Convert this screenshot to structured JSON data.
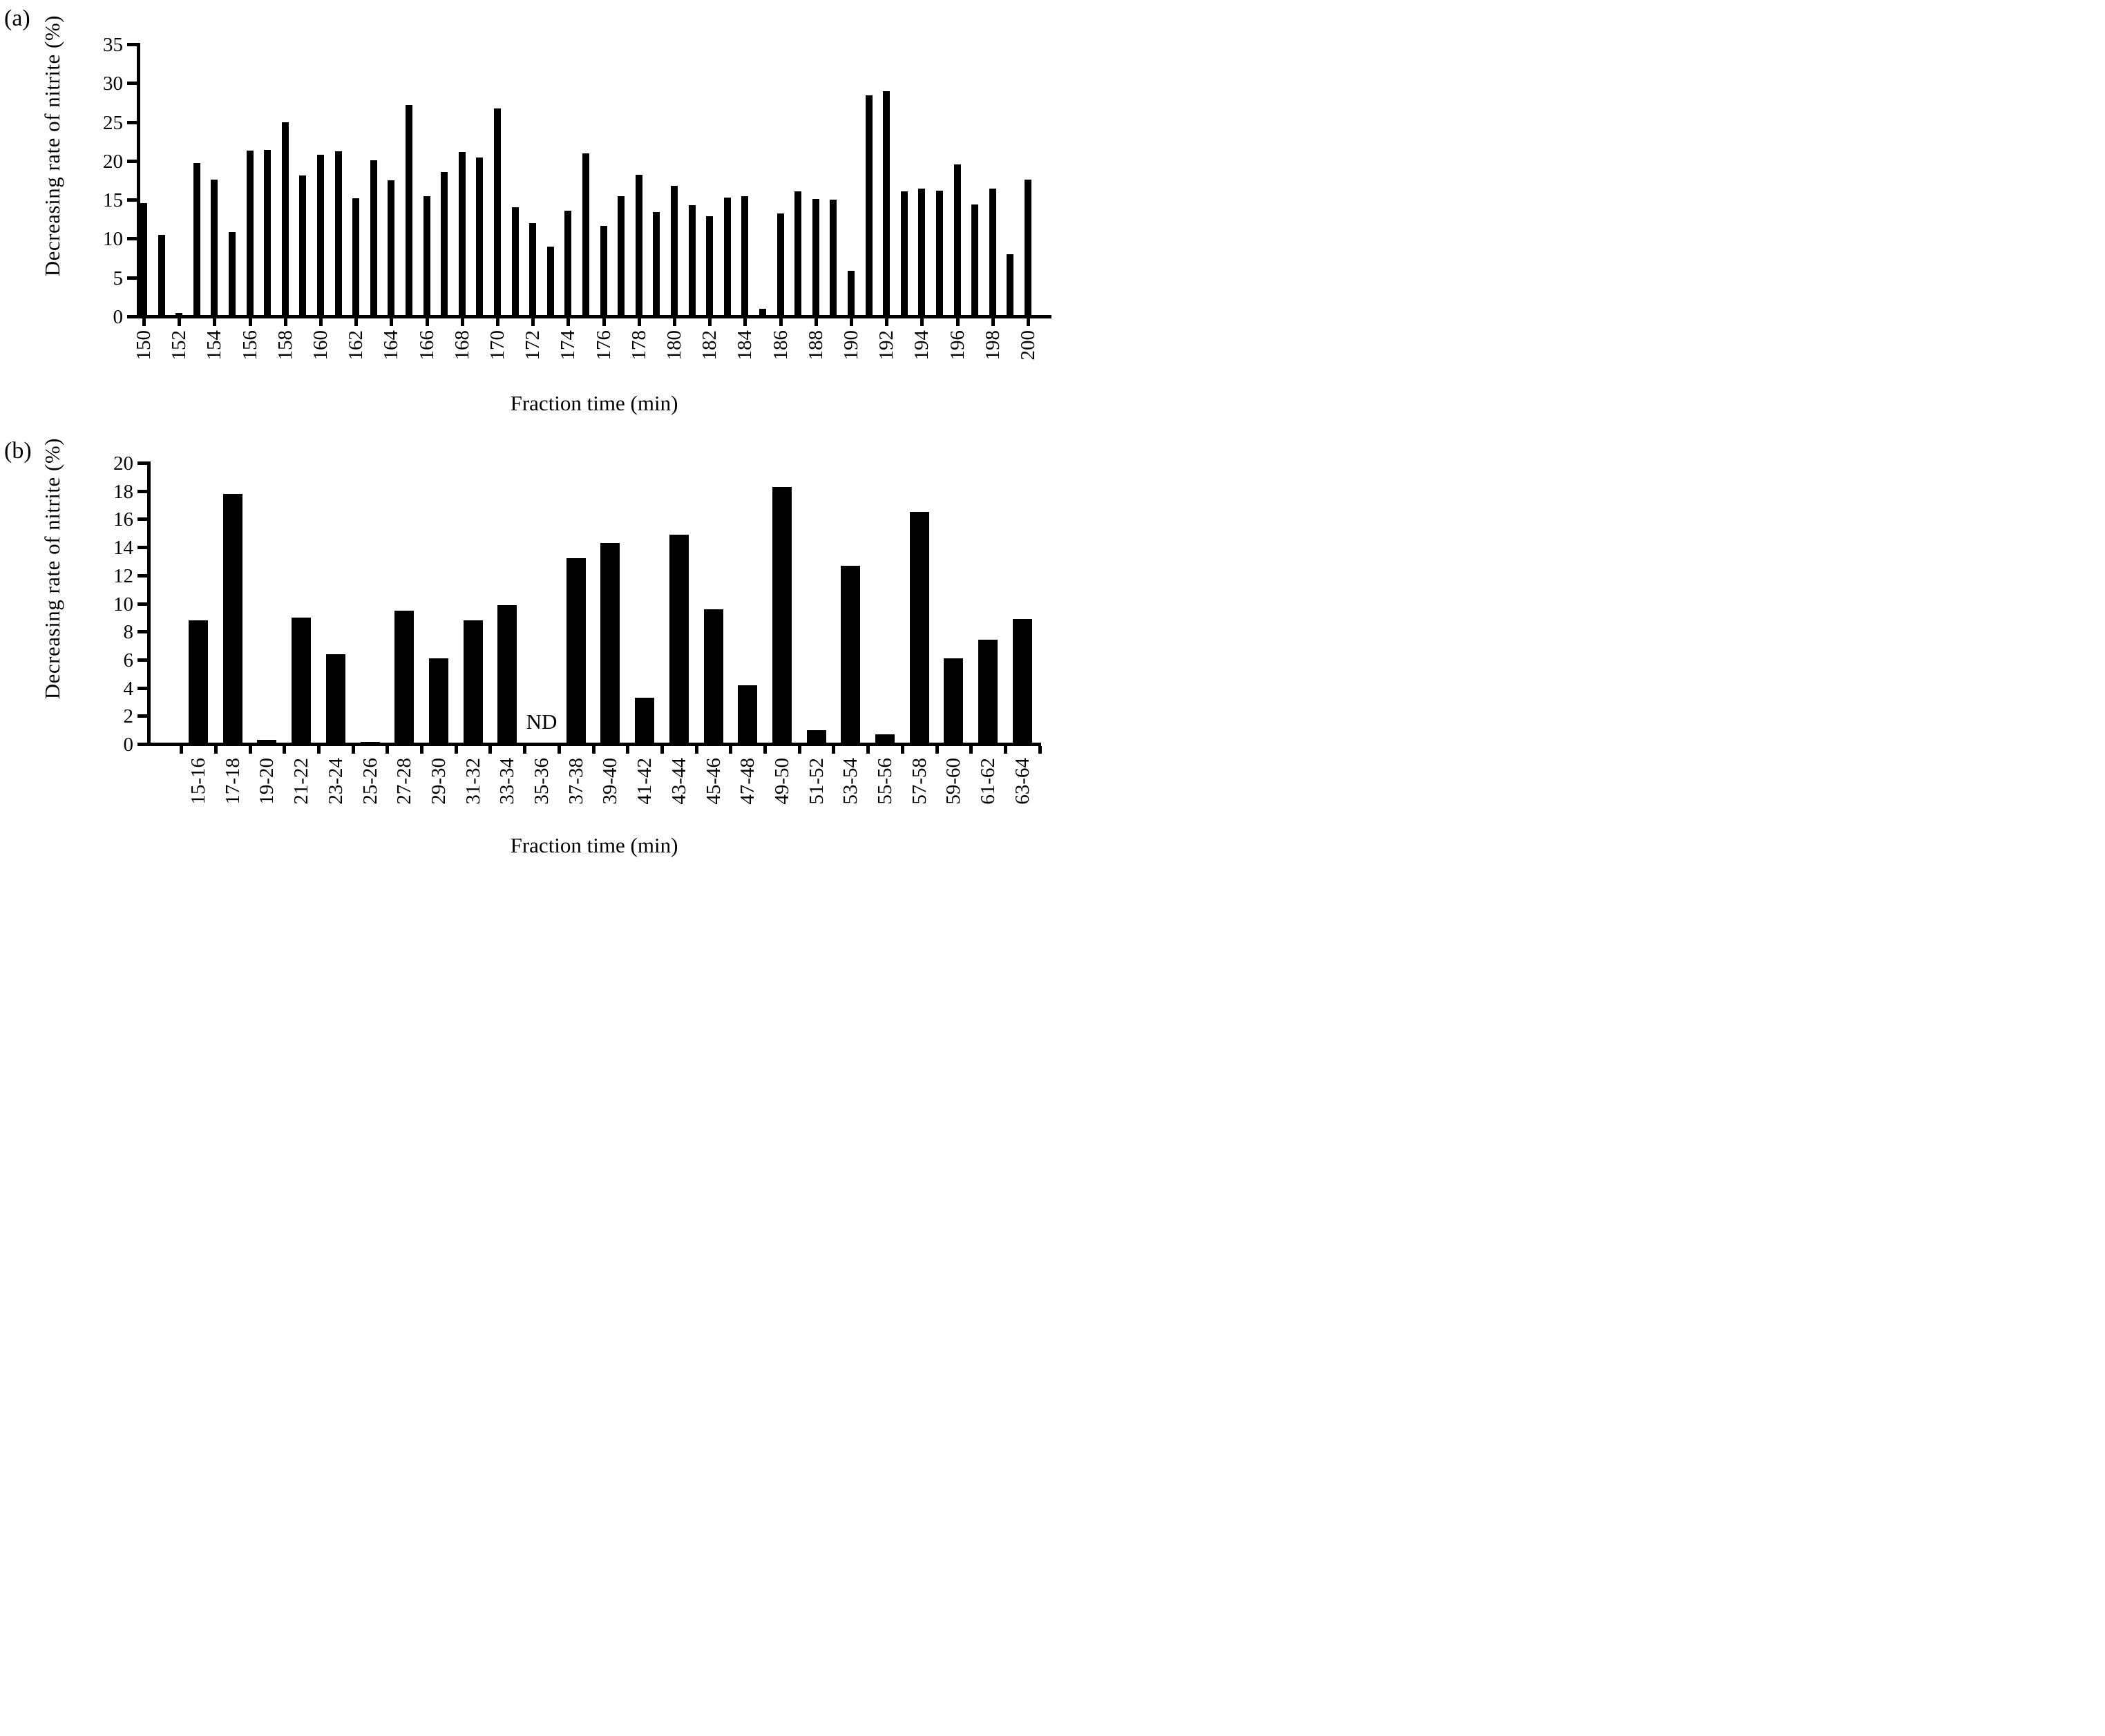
{
  "chart_data": [
    {
      "type": "bar",
      "panel_label": "(a)",
      "ylabel": "Decreasing rate of nitrite (%)",
      "xlabel": "Fraction time (min)",
      "ylim": [
        0,
        35
      ],
      "ytick_step": 5,
      "yticks": [
        0,
        5,
        10,
        15,
        20,
        25,
        30,
        35
      ],
      "grid": "off",
      "legend": "none",
      "bar_color": "#000000",
      "categories": [
        150,
        151,
        152,
        153,
        154,
        155,
        156,
        157,
        158,
        159,
        160,
        161,
        162,
        163,
        164,
        165,
        166,
        167,
        168,
        169,
        170,
        171,
        172,
        173,
        174,
        175,
        176,
        177,
        178,
        179,
        180,
        181,
        182,
        183,
        184,
        185,
        186,
        187,
        188,
        189,
        190,
        191,
        192,
        193,
        194,
        195,
        196,
        197,
        198,
        199,
        200
      ],
      "xticks": [
        150,
        152,
        154,
        156,
        158,
        160,
        162,
        164,
        166,
        168,
        170,
        172,
        174,
        176,
        178,
        180,
        182,
        184,
        186,
        188,
        190,
        192,
        194,
        196,
        198,
        200
      ],
      "values": [
        14.6,
        10.5,
        0.4,
        19.7,
        17.6,
        10.8,
        21.3,
        21.4,
        25.0,
        18.1,
        20.8,
        21.2,
        15.2,
        20.1,
        17.5,
        27.2,
        15.5,
        18.6,
        21.1,
        20.4,
        26.7,
        14.0,
        12.0,
        9.0,
        13.6,
        21.0,
        11.6,
        15.5,
        18.2,
        13.4,
        16.8,
        14.3,
        12.9,
        15.3,
        15.5,
        1.0,
        13.2,
        16.1,
        15.1,
        15.0,
        5.9,
        28.4,
        29.0,
        16.1,
        16.4,
        16.2,
        19.5,
        14.4,
        16.4,
        8.0,
        17.6
      ]
    },
    {
      "type": "bar",
      "panel_label": "(b)",
      "ylabel": "Decreasing rate of nitrite (%)",
      "xlabel": "Fraction time (min)",
      "ylim": [
        0,
        20
      ],
      "ytick_step": 2,
      "yticks": [
        0,
        2,
        4,
        6,
        8,
        10,
        12,
        14,
        16,
        18,
        20
      ],
      "grid": "off",
      "legend": "none",
      "bar_color": "#000000",
      "nd_label": "ND",
      "nd_category": "35-36",
      "categories": [
        "15-16",
        "17-18",
        "19-20",
        "21-22",
        "23-24",
        "25-26",
        "27-28",
        "29-30",
        "31-32",
        "33-34",
        "35-36",
        "37-38",
        "39-40",
        "41-42",
        "43-44",
        "45-46",
        "47-48",
        "49-50",
        "51-52",
        "53-54",
        "55-56",
        "57-58",
        "59-60",
        "61-62",
        "63-64"
      ],
      "values": [
        8.8,
        17.8,
        0.3,
        9.0,
        6.4,
        0.15,
        9.5,
        6.1,
        8.8,
        9.9,
        null,
        13.2,
        14.3,
        3.3,
        14.9,
        9.6,
        4.2,
        18.3,
        1.0,
        12.7,
        0.7,
        16.5,
        6.1,
        7.4,
        8.9
      ]
    }
  ]
}
